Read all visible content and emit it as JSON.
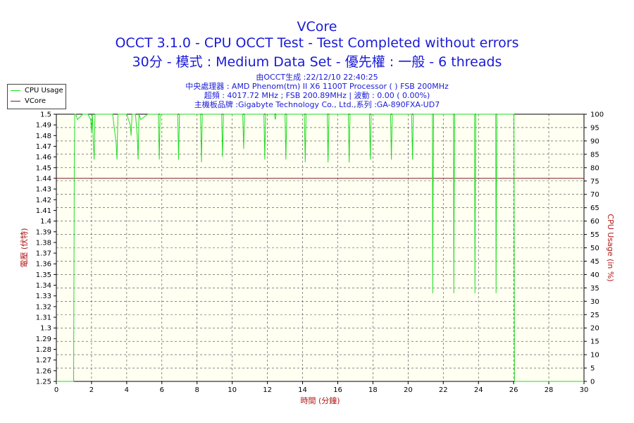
{
  "header": {
    "title": "VCore",
    "subtitle1": "OCCT 3.1.0 - CPU OCCT Test - Test Completed without errors",
    "subtitle2": "30分 - 模式 : Medium Data Set - 優先權 : 一般 - 6 threads",
    "info": [
      "由OCCT生成 :22/12/10 22:40:25",
      "中央處理器 : AMD Phenom(tm) II X6 1100T Processor (  ) FSB 200MHz",
      "超頻 : 4017.72 MHz ; FSB 200.89MHz | 波動 : 0.00 ( 0.00%)",
      "主機板品牌 :Gigabyte Technology Co., Ltd.,系列 :GA-890FXA-UD7"
    ]
  },
  "legend": {
    "items": [
      {
        "label": "CPU Usage",
        "color": "#22dd22"
      },
      {
        "label": "VCore",
        "color": "#7a1a1a"
      }
    ]
  },
  "chart_data": {
    "type": "line",
    "xlabel": "時間 (分鐘)",
    "ylabel_left": "電壓 (伏特)",
    "ylabel_right": "CPU Usage (in %)",
    "xlim": [
      0,
      30
    ],
    "x_ticks": [
      0,
      2,
      4,
      6,
      8,
      10,
      12,
      14,
      16,
      18,
      20,
      22,
      24,
      26,
      28,
      30
    ],
    "ylim_left": [
      1.25,
      1.5
    ],
    "y_left_ticks": [
      "1.25",
      "1.26",
      "1.27",
      "1.28",
      "1.29",
      "1.3",
      "1.31",
      "1.32",
      "1.33",
      "1.34",
      "1.35",
      "1.36",
      "1.37",
      "1.38",
      "1.39",
      "1.4",
      "1.41",
      "1.42",
      "1.43",
      "1.44",
      "1.45",
      "1.46",
      "1.47",
      "1.48",
      "1.49",
      "1.5"
    ],
    "ylim_right": [
      0,
      100
    ],
    "y_right_ticks": [
      0,
      5,
      10,
      15,
      20,
      25,
      30,
      35,
      40,
      45,
      50,
      55,
      60,
      65,
      70,
      75,
      80,
      85,
      90,
      95,
      100
    ],
    "grid": true,
    "legend_position": "top-left",
    "series": [
      {
        "name": "VCore",
        "axis": "left",
        "color": "#7a1a1a",
        "x": [
          0,
          30
        ],
        "y": [
          1.44,
          1.44
        ]
      },
      {
        "name": "CPU Usage",
        "axis": "right",
        "color": "#22dd22",
        "x": [
          0,
          0.98,
          1.0,
          1.02,
          1.05,
          1.1,
          1.2,
          1.5,
          1.8,
          1.95,
          2.0,
          2.05,
          2.1,
          2.15,
          2.2,
          2.5,
          2.9,
          3.2,
          3.4,
          3.45,
          3.5,
          3.6,
          4.0,
          4.2,
          4.25,
          4.3,
          4.5,
          4.6,
          4.65,
          4.7,
          4.8,
          5.2,
          5.8,
          5.85,
          5.9,
          6.2,
          6.9,
          6.95,
          7.0,
          7.5,
          8.2,
          8.25,
          8.3,
          8.8,
          9.4,
          9.45,
          9.5,
          10.0,
          10.6,
          10.65,
          10.7,
          11.2,
          11.8,
          11.85,
          11.9,
          12.4,
          12.45,
          12.5,
          13.0,
          13.05,
          13.1,
          13.6,
          14.1,
          14.15,
          14.2,
          14.8,
          15.4,
          15.45,
          15.5,
          16.2,
          16.6,
          16.65,
          16.7,
          17.3,
          17.8,
          17.85,
          17.9,
          18.5,
          19.0,
          19.05,
          19.1,
          19.7,
          20.2,
          20.25,
          20.3,
          20.9,
          21.38,
          21.4,
          21.42,
          21.45,
          22.0,
          22.58,
          22.6,
          22.62,
          22.65,
          23.2,
          23.78,
          23.8,
          23.82,
          23.85,
          24.4,
          24.98,
          25.0,
          25.02,
          25.05,
          25.6,
          26.02,
          26.05,
          26.08,
          30
        ],
        "y": [
          0,
          0,
          40,
          85,
          100,
          100,
          98,
          100,
          100,
          98,
          93,
          100,
          90,
          83,
          100,
          100,
          100,
          100,
          89,
          83,
          100,
          100,
          100,
          96,
          92,
          100,
          100,
          92,
          83,
          100,
          98,
          100,
          100,
          83,
          100,
          100,
          100,
          83,
          100,
          100,
          100,
          82,
          100,
          100,
          100,
          84,
          100,
          100,
          100,
          87,
          100,
          100,
          100,
          83,
          100,
          100,
          98,
          100,
          100,
          83,
          100,
          100,
          100,
          82,
          100,
          100,
          100,
          82,
          100,
          100,
          100,
          82,
          100,
          100,
          100,
          83,
          100,
          100,
          100,
          83,
          100,
          100,
          100,
          83,
          100,
          100,
          100,
          33,
          70,
          100,
          100,
          100,
          33,
          67,
          100,
          100,
          100,
          33,
          67,
          100,
          100,
          100,
          33,
          67,
          100,
          100,
          100,
          0,
          0,
          0
        ]
      }
    ]
  }
}
